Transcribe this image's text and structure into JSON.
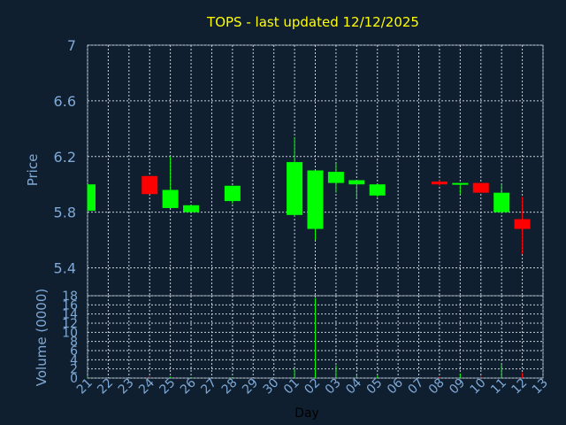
{
  "chart_data": {
    "type": "candlestick",
    "title": "TOPS - last updated 12/12/2025",
    "ylabel": "Price",
    "volume_label": "Volume (0000)",
    "xlabel": "Day",
    "ylim": [
      5.2,
      7.0
    ],
    "y_ticks": [
      "5.4",
      "5.8",
      "6.2",
      "6.6",
      "7"
    ],
    "volume_ylim": [
      0,
      18
    ],
    "volume_ticks": [
      "0",
      "2",
      "4",
      "6",
      "8",
      "10",
      "12",
      "14",
      "16",
      "18"
    ],
    "categories": [
      "21",
      "22",
      "23",
      "24",
      "25",
      "26",
      "27",
      "28",
      "29",
      "30",
      "01",
      "02",
      "03",
      "04",
      "05",
      "06",
      "07",
      "08",
      "09",
      "10",
      "11",
      "12",
      "13"
    ],
    "candles": [
      {
        "day": "21",
        "open": 5.81,
        "close": 6.0,
        "high": 6.0,
        "low": 5.81,
        "volume": 0.2
      },
      {
        "day": "24",
        "open": 6.06,
        "close": 5.93,
        "high": 6.06,
        "low": 5.93,
        "volume": 0.4
      },
      {
        "day": "25",
        "open": 5.83,
        "close": 5.96,
        "high": 6.2,
        "low": 5.83,
        "volume": 0.3
      },
      {
        "day": "26",
        "open": 5.8,
        "close": 5.85,
        "high": 5.85,
        "low": 5.8,
        "volume": 0.2
      },
      {
        "day": "28",
        "open": 5.88,
        "close": 5.99,
        "high": 5.99,
        "low": 5.86,
        "volume": 0.2
      },
      {
        "day": "01",
        "open": 5.78,
        "close": 6.16,
        "high": 6.34,
        "low": 5.77,
        "volume": 2.0
      },
      {
        "day": "02",
        "open": 5.68,
        "close": 6.1,
        "high": 6.1,
        "low": 5.6,
        "volume": 17.5
      },
      {
        "day": "03",
        "open": 6.01,
        "close": 6.09,
        "high": 6.15,
        "low": 5.94,
        "volume": 2.8
      },
      {
        "day": "04",
        "open": 6.0,
        "close": 6.03,
        "high": 6.03,
        "low": 5.9,
        "volume": 0.6
      },
      {
        "day": "05",
        "open": 5.92,
        "close": 6.0,
        "high": 6.0,
        "low": 5.91,
        "volume": 0.5
      },
      {
        "day": "08",
        "open": 6.02,
        "close": 6.0,
        "high": 6.03,
        "low": 5.99,
        "volume": 0.3
      },
      {
        "day": "09",
        "open": 6.0,
        "close": 6.01,
        "high": 6.01,
        "low": 5.93,
        "volume": 1.0
      },
      {
        "day": "10",
        "open": 6.01,
        "close": 5.94,
        "high": 6.01,
        "low": 5.94,
        "volume": 0.5
      },
      {
        "day": "11",
        "open": 5.8,
        "close": 5.94,
        "high": 6.0,
        "low": 5.79,
        "volume": 3.0
      },
      {
        "day": "12",
        "open": 5.75,
        "close": 5.68,
        "high": 5.91,
        "low": 5.5,
        "volume": 1.2
      }
    ],
    "colors": {
      "background": "#0f1f30",
      "up": "#00ff00",
      "down": "#ff0000",
      "title": "#ffff00",
      "tick": "#7fa9d6"
    },
    "grid": true
  }
}
